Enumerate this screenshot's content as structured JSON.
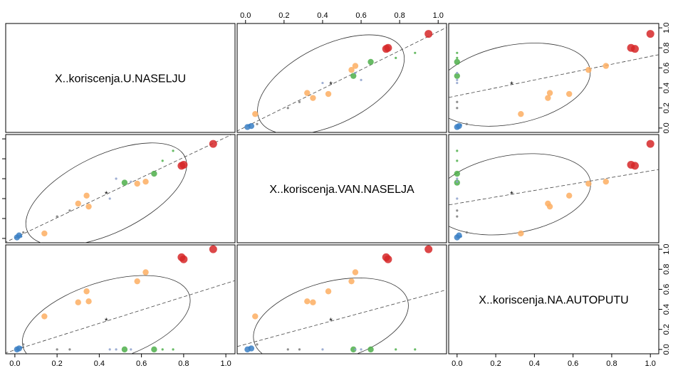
{
  "chart_data": {
    "type": "scatter",
    "subtype": "scatterplot-matrix",
    "variables": [
      "X..koriscenja.U.NASELJU",
      "X..koriscenja.VAN.NASELJA",
      "X..koriscenja.NA.AUTOPUTU"
    ],
    "axis_range": [
      0,
      1
    ],
    "ticks": [
      "0.0",
      "0.2",
      "0.4",
      "0.6",
      "0.8",
      "1.0"
    ],
    "tick_values": [
      0,
      0.2,
      0.4,
      0.6,
      0.8,
      1.0
    ],
    "grid": false,
    "legend": "none",
    "cluster_colors": [
      "#d62728",
      "#fdae61",
      "#4daf4a",
      "#8da0cb",
      "#3a7fc4",
      "#7a7a7a"
    ],
    "points": [
      {
        "u": 0.94,
        "v": 0.95,
        "a": 1.0,
        "cluster": 0,
        "size": "large"
      },
      {
        "u": 0.79,
        "v": 0.73,
        "a": 0.92,
        "cluster": 0,
        "size": "large"
      },
      {
        "u": 0.8,
        "v": 0.74,
        "a": 0.9,
        "cluster": 0,
        "size": "large"
      },
      {
        "u": 0.62,
        "v": 0.57,
        "a": 0.77,
        "cluster": 1,
        "size": "medium"
      },
      {
        "u": 0.58,
        "v": 0.55,
        "a": 0.68,
        "cluster": 1,
        "size": "medium"
      },
      {
        "u": 0.34,
        "v": 0.43,
        "a": 0.58,
        "cluster": 1,
        "size": "medium"
      },
      {
        "u": 0.3,
        "v": 0.35,
        "a": 0.47,
        "cluster": 1,
        "size": "medium"
      },
      {
        "u": 0.35,
        "v": 0.32,
        "a": 0.48,
        "cluster": 1,
        "size": "medium"
      },
      {
        "u": 0.14,
        "v": 0.05,
        "a": 0.33,
        "cluster": 1,
        "size": "medium"
      },
      {
        "u": 0.66,
        "v": 0.65,
        "a": 0.0,
        "cluster": 2,
        "size": "medium"
      },
      {
        "u": 0.52,
        "v": 0.56,
        "a": 0.0,
        "cluster": 2,
        "size": "medium"
      },
      {
        "u": 0.75,
        "v": 0.88,
        "a": 0.0,
        "cluster": 2,
        "size": "small"
      },
      {
        "u": 0.7,
        "v": 0.78,
        "a": 0.0,
        "cluster": 2,
        "size": "small"
      },
      {
        "u": 0.55,
        "v": 0.57,
        "a": 0.0,
        "cluster": 3,
        "size": "small"
      },
      {
        "u": 0.48,
        "v": 0.6,
        "a": 0.0,
        "cluster": 3,
        "size": "small"
      },
      {
        "u": 0.45,
        "v": 0.4,
        "a": 0.0,
        "cluster": 3,
        "size": "small"
      },
      {
        "u": 0.02,
        "v": 0.03,
        "a": 0.01,
        "cluster": 4,
        "size": "medium"
      },
      {
        "u": 0.01,
        "v": 0.01,
        "a": 0.0,
        "cluster": 4,
        "size": "medium"
      },
      {
        "u": 0.03,
        "v": 0.02,
        "a": 0.02,
        "cluster": 4,
        "size": "small"
      },
      {
        "u": 0.04,
        "v": 0.06,
        "a": 0.05,
        "cluster": 5,
        "size": "small"
      },
      {
        "u": 0.2,
        "v": 0.22,
        "a": 0.0,
        "cluster": 5,
        "size": "small"
      },
      {
        "u": 0.26,
        "v": 0.28,
        "a": 0.0,
        "cluster": 5,
        "size": "small"
      }
    ]
  }
}
